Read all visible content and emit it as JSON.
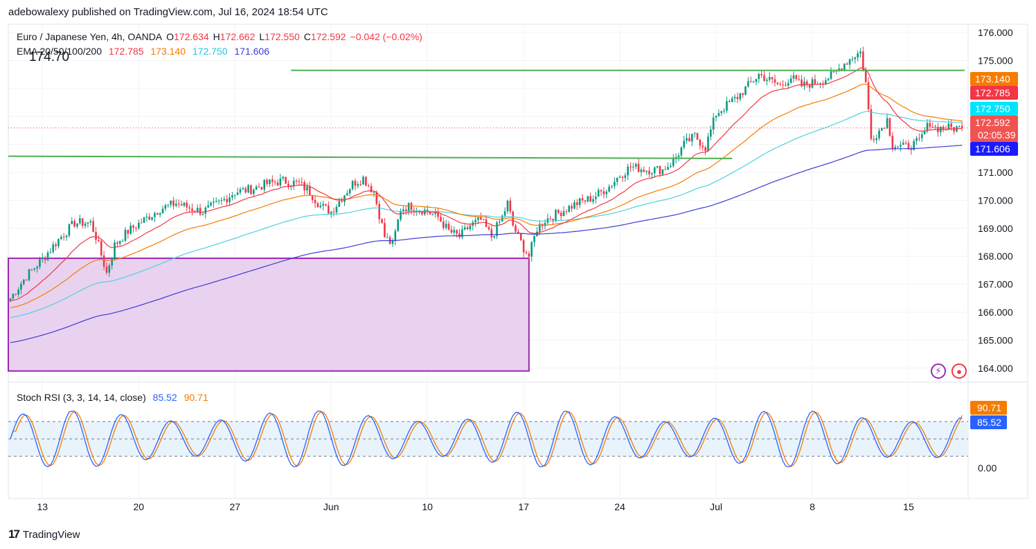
{
  "header": {
    "publisher_line": "adebowalexy published on TradingView.com, Jul 16, 2024 18:54 UTC"
  },
  "legend": {
    "symbol": "Euro / Japanese Yen, 4h, OANDA",
    "open_label": "O",
    "open": "172.634",
    "high_label": "H",
    "high": "172.662",
    "low_label": "L",
    "low": "172.550",
    "close_label": "C",
    "close": "172.592",
    "change": "−0.042 (−0.02%)",
    "ema_label": "EMA 20/50/100/200",
    "ema20": "172.785",
    "ema50": "173.140",
    "ema100": "172.750",
    "ema200": "171.606"
  },
  "annotation_text": "174.70",
  "stoch": {
    "label": "Stoch RSI (3, 3, 14, 14, close)",
    "k": "85.52",
    "d": "90.71",
    "axis_label": "0.00"
  },
  "footer": {
    "brand": "TradingView"
  },
  "colors": {
    "ema20": "#f23645",
    "ema50": "#f57c00",
    "ema100": "#4dd0e1",
    "ema200": "#3c3cd8",
    "up": "#089981",
    "down": "#f23645",
    "support_lines": "#4caf50",
    "zone_fill": "#e9d2ef",
    "zone_border": "#9c27b0",
    "stoch_k": "#2962ff",
    "stoch_d": "#f57c00"
  },
  "chart_data": {
    "type": "candlestick",
    "price_axis": {
      "min": 163.5,
      "max": 176.3,
      "ticks": [
        "176.000",
        "175.000",
        "174.000",
        "173.000",
        "172.000",
        "171.000",
        "170.000",
        "169.000",
        "168.000",
        "167.000",
        "166.000",
        "165.000",
        "164.000"
      ]
    },
    "price_labels": [
      {
        "name": "ema50",
        "value": 173.14,
        "text": "173.140",
        "color": "#f57c00"
      },
      {
        "name": "ema20",
        "value": 172.785,
        "text": "172.785",
        "color": "#f23645"
      },
      {
        "name": "ema100",
        "value": 172.75,
        "text": "172.750",
        "color": "#00e5ff"
      },
      {
        "name": "last",
        "value": 172.592,
        "text": "172.592",
        "countdown": "02:05:39",
        "color": "#f05350"
      },
      {
        "name": "ema200",
        "value": 171.606,
        "text": "171.606",
        "color": "#1a1aff"
      }
    ],
    "x_labels": [
      {
        "text": "13",
        "idx": 12
      },
      {
        "text": "20",
        "idx": 48
      },
      {
        "text": "27",
        "idx": 84
      },
      {
        "text": "Jun",
        "idx": 120
      },
      {
        "text": "10",
        "idx": 156
      },
      {
        "text": "17",
        "idx": 192
      },
      {
        "text": "24",
        "idx": 228
      },
      {
        "text": "Jul",
        "idx": 264
      },
      {
        "text": "8",
        "idx": 300
      },
      {
        "text": "15",
        "idx": 336
      }
    ],
    "anchors": [
      [
        0,
        166.5
      ],
      [
        6,
        167.3
      ],
      [
        12,
        167.9
      ],
      [
        18,
        168.6
      ],
      [
        24,
        169.2
      ],
      [
        30,
        169.2
      ],
      [
        32,
        168.7
      ],
      [
        36,
        167.4
      ],
      [
        39,
        168.4
      ],
      [
        44,
        168.9
      ],
      [
        50,
        169.3
      ],
      [
        56,
        169.7
      ],
      [
        62,
        169.9
      ],
      [
        68,
        169.7
      ],
      [
        72,
        169.6
      ],
      [
        78,
        169.9
      ],
      [
        84,
        170.3
      ],
      [
        90,
        170.4
      ],
      [
        96,
        170.6
      ],
      [
        102,
        170.7
      ],
      [
        108,
        170.6
      ],
      [
        112,
        170.3
      ],
      [
        116,
        169.8
      ],
      [
        120,
        169.6
      ],
      [
        124,
        170.1
      ],
      [
        128,
        170.6
      ],
      [
        132,
        170.8
      ],
      [
        136,
        170.3
      ],
      [
        140,
        168.7
      ],
      [
        143,
        168.4
      ],
      [
        146,
        169.7
      ],
      [
        150,
        169.8
      ],
      [
        156,
        169.6
      ],
      [
        160,
        169.4
      ],
      [
        164,
        168.9
      ],
      [
        168,
        168.7
      ],
      [
        172,
        169.1
      ],
      [
        176,
        169.3
      ],
      [
        180,
        168.7
      ],
      [
        184,
        169.4
      ],
      [
        186,
        169.9
      ],
      [
        188,
        169.1
      ],
      [
        192,
        168.3
      ],
      [
        194,
        168.0
      ],
      [
        197,
        169.0
      ],
      [
        200,
        169.3
      ],
      [
        206,
        169.6
      ],
      [
        212,
        169.9
      ],
      [
        218,
        170.1
      ],
      [
        224,
        170.5
      ],
      [
        228,
        170.9
      ],
      [
        232,
        171.2
      ],
      [
        238,
        171.1
      ],
      [
        244,
        171.1
      ],
      [
        248,
        171.4
      ],
      [
        252,
        172.0
      ],
      [
        256,
        172.3
      ],
      [
        260,
        171.9
      ],
      [
        264,
        173.1
      ],
      [
        268,
        173.4
      ],
      [
        272,
        173.7
      ],
      [
        276,
        174.1
      ],
      [
        280,
        174.5
      ],
      [
        284,
        174.3
      ],
      [
        288,
        174.1
      ],
      [
        292,
        174.4
      ],
      [
        296,
        174.1
      ],
      [
        300,
        174.2
      ],
      [
        304,
        174.3
      ],
      [
        308,
        174.5
      ],
      [
        312,
        174.9
      ],
      [
        316,
        175.2
      ],
      [
        318,
        175.3
      ],
      [
        320,
        174.2
      ],
      [
        322,
        172.2
      ],
      [
        326,
        172.6
      ],
      [
        328,
        172.9
      ],
      [
        330,
        172.0
      ],
      [
        334,
        171.9
      ],
      [
        338,
        172.0
      ],
      [
        340,
        172.1
      ],
      [
        344,
        172.8
      ],
      [
        346,
        172.59
      ]
    ],
    "zone": {
      "from_idx": 0,
      "to_idx": 194,
      "top": 167.93,
      "bottom": 163.9
    },
    "lines": [
      {
        "name": "resistance",
        "from_idx": 105,
        "to_idx": 357,
        "value": 174.65
      },
      {
        "name": "support",
        "from_idx": 0,
        "to_idx": 270,
        "from_value": 171.58,
        "to_value": 171.5
      }
    ],
    "stoch_axis": {
      "min": -5,
      "max": 105
    },
    "stoch_levels": [
      80,
      50,
      20
    ]
  }
}
